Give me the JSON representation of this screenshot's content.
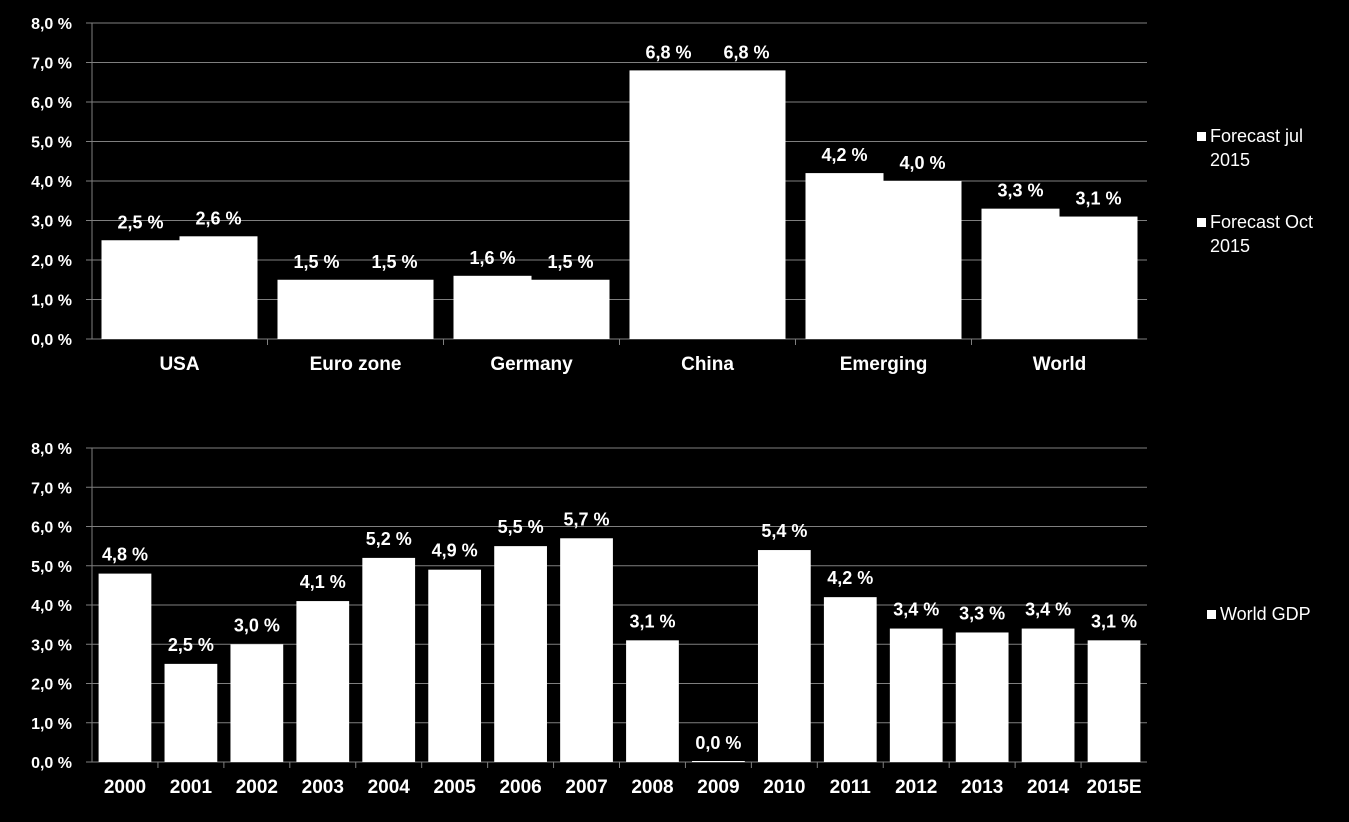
{
  "colors": {
    "background": "#000000",
    "bars": "#FFFFFF",
    "text": "#FFFFFF",
    "gridlines": "#7f7f7f"
  },
  "chart_data": [
    {
      "type": "bar",
      "categories": [
        "USA",
        "Euro zone",
        "Germany",
        "China",
        "Emerging",
        "World"
      ],
      "series": [
        {
          "name": "Forecast jul 2015",
          "legend_lines": [
            "Forecast jul",
            "2015"
          ],
          "values": [
            2.5,
            1.5,
            1.6,
            6.8,
            4.2,
            3.3
          ],
          "labels": [
            "2,5 %",
            "1,5 %",
            "1,6 %",
            "6,8 %",
            "4,2 %",
            "3,3 %"
          ]
        },
        {
          "name": "Forecast Oct 2015",
          "legend_lines": [
            "Forecast Oct",
            "2015"
          ],
          "values": [
            2.6,
            1.5,
            1.5,
            6.8,
            4.0,
            3.1
          ],
          "labels": [
            "2,6 %",
            "1,5 %",
            "1,5 %",
            "6,8 %",
            "4,0 %",
            "3,1 %"
          ]
        }
      ],
      "ylim": [
        0,
        8
      ],
      "yticks": [
        0,
        1,
        2,
        3,
        4,
        5,
        6,
        7,
        8
      ],
      "ytick_labels": [
        "0,0 %",
        "1,0 %",
        "2,0 %",
        "3,0 %",
        "4,0 %",
        "5,0 %",
        "6,0 %",
        "7,0 %",
        "8,0 %"
      ],
      "grid": true,
      "legend_position": "right"
    },
    {
      "type": "bar",
      "categories": [
        "2000",
        "2001",
        "2002",
        "2003",
        "2004",
        "2005",
        "2006",
        "2007",
        "2008",
        "2009",
        "2010",
        "2011",
        "2012",
        "2013",
        "2014",
        "2015E"
      ],
      "series": [
        {
          "name": "World GDP",
          "legend_lines": [
            "World GDP"
          ],
          "values": [
            4.8,
            2.5,
            3.0,
            4.1,
            5.2,
            4.9,
            5.5,
            5.7,
            3.1,
            0.0,
            5.4,
            4.2,
            3.4,
            3.3,
            3.4,
            3.1
          ],
          "labels": [
            "4,8 %",
            "2,5 %",
            "3,0 %",
            "4,1 %",
            "5,2 %",
            "4,9 %",
            "5,5 %",
            "5,7 %",
            "3,1 %",
            "0,0 %",
            "5,4 %",
            "4,2 %",
            "3,4 %",
            "3,3 %",
            "3,4 %",
            "3,1 %"
          ]
        }
      ],
      "ylim": [
        0,
        8
      ],
      "yticks": [
        0,
        1,
        2,
        3,
        4,
        5,
        6,
        7,
        8
      ],
      "ytick_labels": [
        "0,0 %",
        "1,0 %",
        "2,0 %",
        "3,0 %",
        "4,0 %",
        "5,0 %",
        "6,0 %",
        "7,0 %",
        "8,0 %"
      ],
      "grid": true,
      "legend_position": "right"
    }
  ]
}
